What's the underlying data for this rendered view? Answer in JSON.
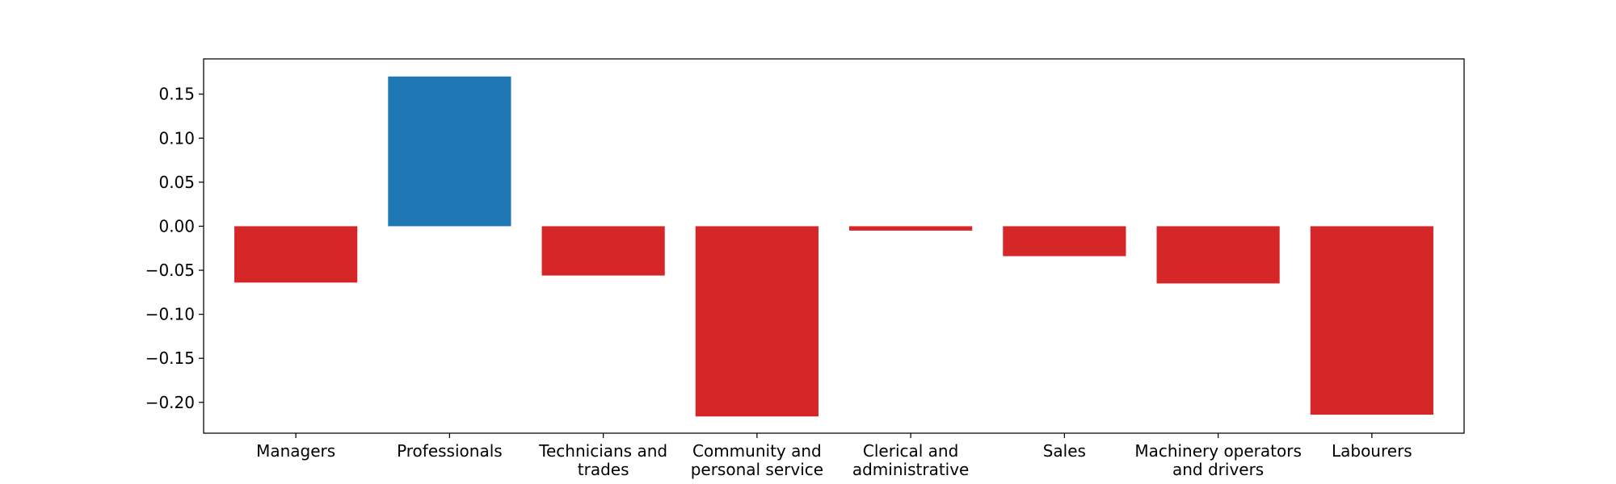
{
  "chart_data": {
    "type": "bar",
    "title": "",
    "xlabel": "",
    "ylabel": "",
    "categories": [
      [
        "Managers"
      ],
      [
        "Professionals"
      ],
      [
        "Technicians and",
        "trades"
      ],
      [
        "Community and",
        "personal service"
      ],
      [
        "Clerical and",
        "administrative"
      ],
      [
        "Sales"
      ],
      [
        "Machinery operators",
        "and drivers"
      ],
      [
        "Labourers"
      ]
    ],
    "values": [
      -0.064,
      0.17,
      -0.056,
      -0.216,
      -0.005,
      -0.034,
      -0.065,
      -0.214
    ],
    "ylim": [
      -0.235,
      0.19
    ],
    "yticks": [
      0.15,
      0.1,
      0.05,
      0.0,
      -0.05,
      -0.1,
      -0.15,
      -0.2
    ],
    "ytick_labels": [
      "0.15",
      "0.10",
      "0.05",
      "0.00",
      "−0.05",
      "−0.10",
      "−0.15",
      "−0.20"
    ],
    "grid": false,
    "colors": {
      "positive": "#1f77b4",
      "negative": "#d62728",
      "axis": "#000000"
    }
  }
}
